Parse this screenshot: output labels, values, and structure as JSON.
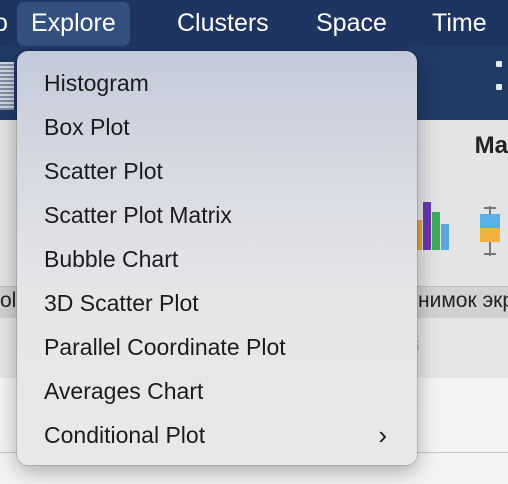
{
  "menubar": {
    "items": [
      "o",
      "Explore",
      "Clusters",
      "Space",
      "Time"
    ],
    "active_index": 1
  },
  "background": {
    "toolbar_label": "Ma",
    "strip_left": "ol",
    "strip_caption": "нимок экр",
    "ghost_text": "s"
  },
  "menu": {
    "items": [
      {
        "label": "Histogram",
        "submenu": false
      },
      {
        "label": "Box Plot",
        "submenu": false
      },
      {
        "label": "Scatter Plot",
        "submenu": false
      },
      {
        "label": "Scatter Plot Matrix",
        "submenu": false
      },
      {
        "label": "Bubble Chart",
        "submenu": false
      },
      {
        "label": "3D Scatter Plot",
        "submenu": false
      },
      {
        "label": "Parallel Coordinate Plot",
        "submenu": false
      },
      {
        "label": "Averages Chart",
        "submenu": false
      },
      {
        "label": "Conditional Plot",
        "submenu": true
      }
    ],
    "submenu_glyph": "›"
  },
  "colors": {
    "menubar_bg": "#1f3561",
    "menubar_active": "#34507f",
    "menu_text": "#1b1b1d"
  }
}
